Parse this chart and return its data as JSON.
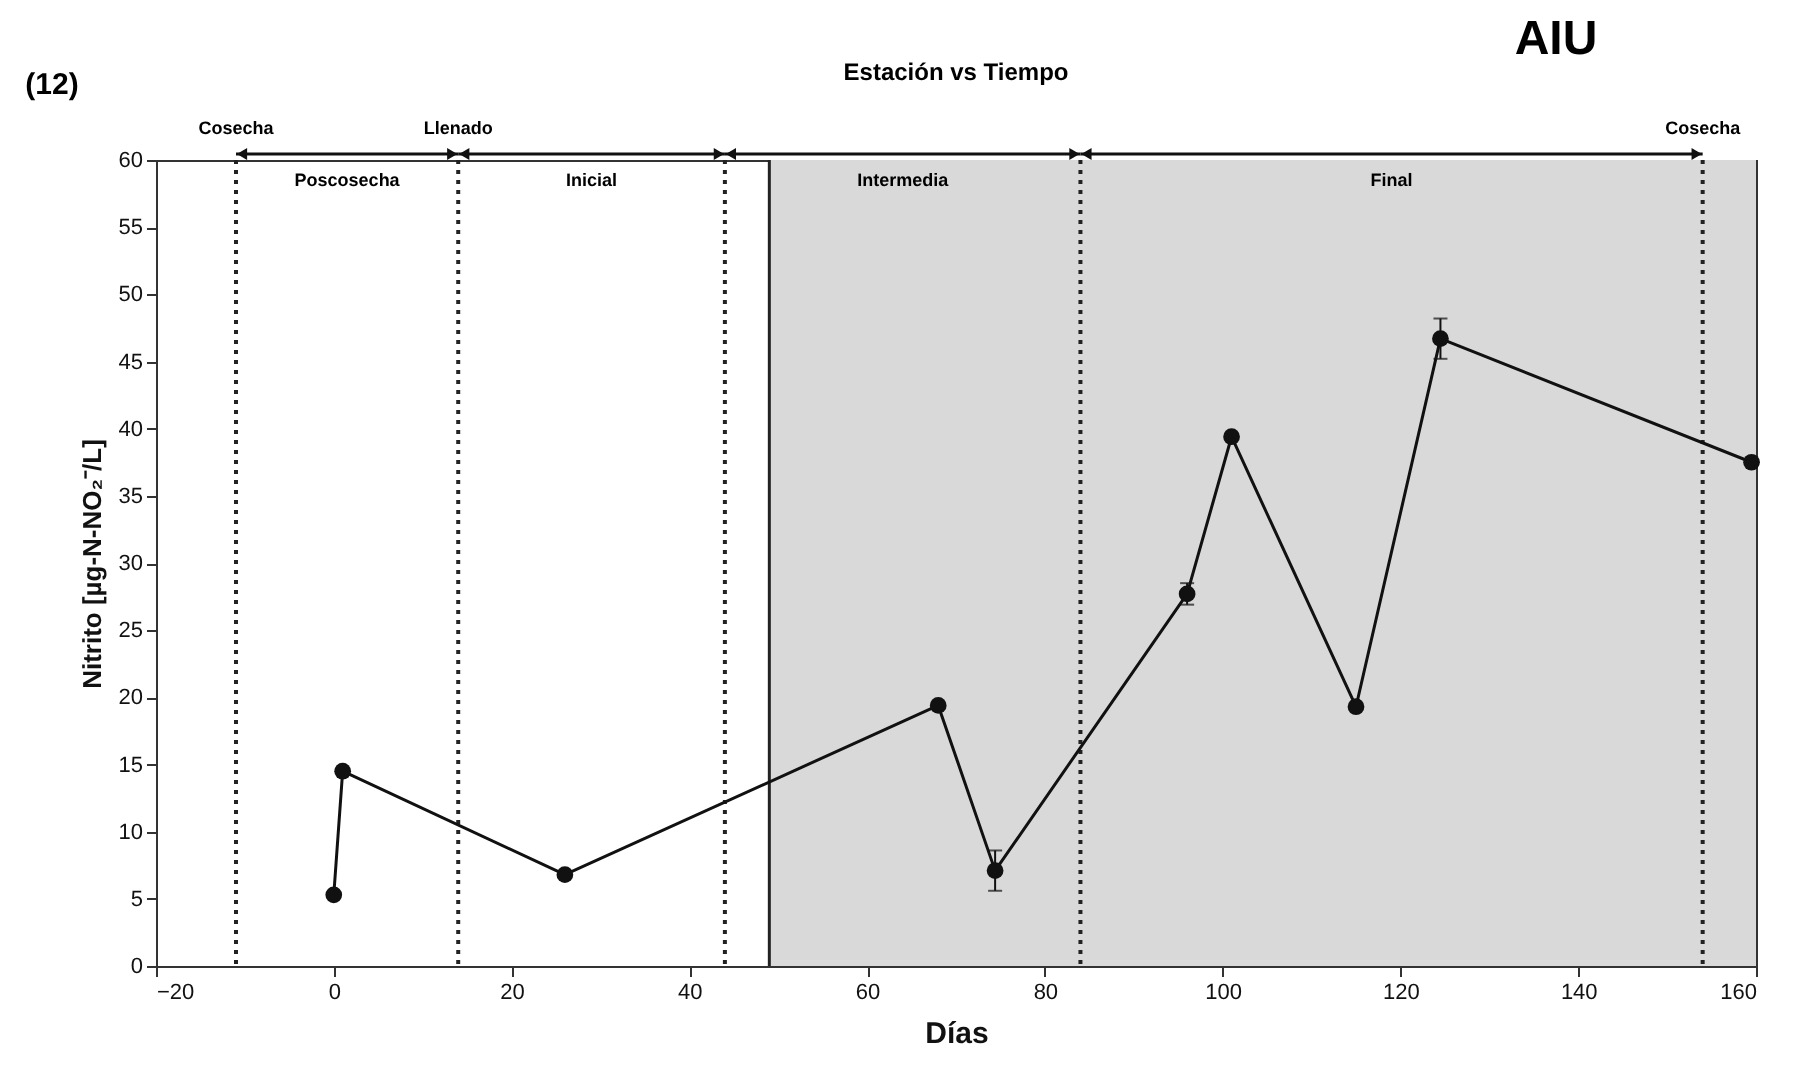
{
  "chart_data": {
    "type": "line",
    "title": "Estación vs Tiempo",
    "xlabel": "Días",
    "ylabel": "Nitrito [µg-N-NO₂⁻/L]",
    "annotations": [
      "(12)",
      "AIU",
      "Poscosecha",
      "Inicial",
      "Intermedia",
      "Final"
    ],
    "x": [
      0,
      1,
      26,
      68,
      74.4,
      96,
      101,
      115,
      124.5,
      159.5
    ],
    "series": [
      {
        "color": "#111111",
        "values": [
          5.3,
          14.5,
          6.8,
          19.4,
          7.1,
          27.7,
          39.4,
          19.3,
          46.7,
          37.5
        ],
        "errors": [
          null,
          null,
          null,
          null,
          1.5,
          0.8,
          null,
          null,
          1.5,
          null
        ]
      }
    ],
    "xlim": [
      -20,
      160
    ],
    "xticks": [
      -20,
      0,
      20,
      40,
      60,
      80,
      100,
      120,
      140,
      160
    ],
    "ylim": [
      0,
      60
    ],
    "yticks": [
      0,
      5,
      10,
      15,
      20,
      25,
      30,
      35,
      40,
      45,
      50,
      55,
      60
    ],
    "marker": "circle",
    "line_style": "solid",
    "ref_lines": [
      {
        "axis": "x",
        "value": -11,
        "label": "Cosecha",
        "line_style": "dotted"
      },
      {
        "axis": "x",
        "value": 14,
        "label": "Llenado",
        "line_style": "dotted"
      },
      {
        "axis": "x",
        "value": 44,
        "label": null,
        "line_style": "dotted"
      },
      {
        "axis": "x",
        "value": 49,
        "label": null,
        "line_style": "solid"
      },
      {
        "axis": "x",
        "value": 84,
        "label": null,
        "line_style": "dotted"
      },
      {
        "axis": "x",
        "value": 154,
        "label": "Cosecha",
        "line_style": "dotted"
      }
    ],
    "bands": [
      {
        "axis": "x",
        "from": 49,
        "to": 160,
        "label": null,
        "color": "#d9d9d9"
      }
    ]
  }
}
